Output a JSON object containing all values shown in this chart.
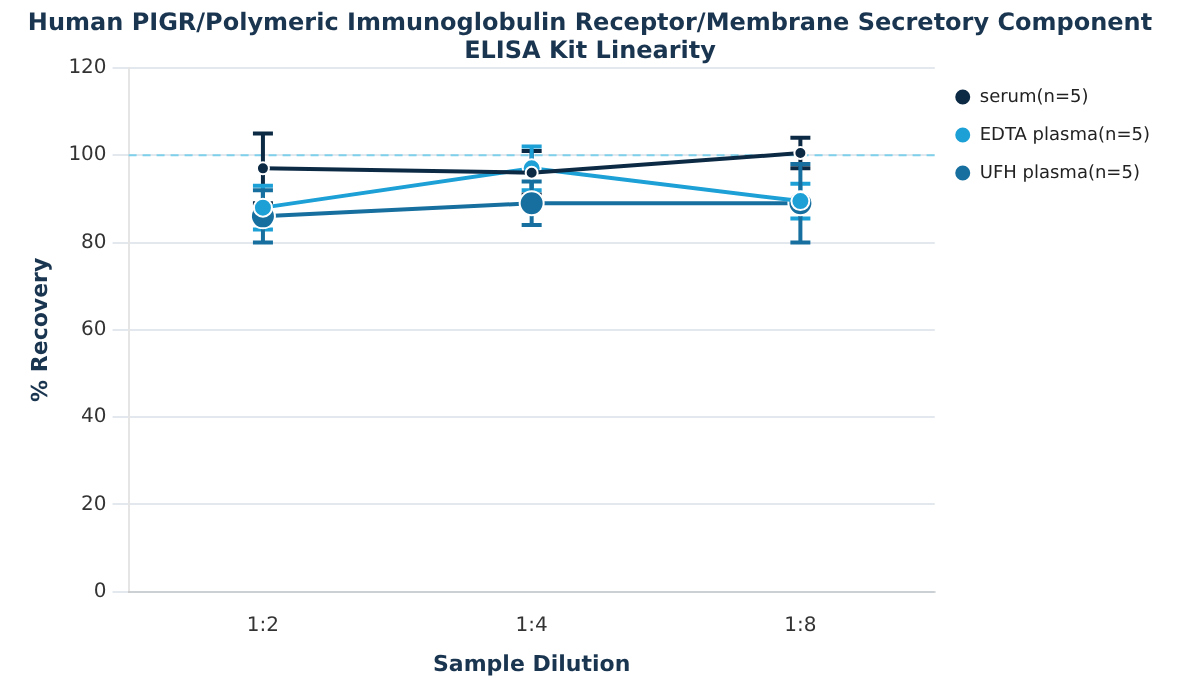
{
  "chart_data": {
    "type": "line",
    "title": "Human PIGR/Polymeric Immunoglobulin Receptor/Membrane Secretory Component ELISA Kit Linearity",
    "xlabel": "Sample Dilution",
    "ylabel": "% Recovery",
    "categories": [
      "1:2",
      "1:4",
      "1:8"
    ],
    "series": [
      {
        "name": "serum(n=5)",
        "color": "#0d2a45",
        "values": [
          97,
          96,
          100.5
        ],
        "errors": [
          8,
          5,
          3.5
        ]
      },
      {
        "name": "EDTA plasma(n=5)",
        "color": "#1ca0d6",
        "values": [
          88,
          97,
          89.5
        ],
        "errors": [
          5,
          5,
          4
        ]
      },
      {
        "name": "UFH plasma(n=5)",
        "color": "#166f9e",
        "values": [
          86,
          89,
          89
        ],
        "errors": [
          6,
          5,
          9
        ]
      }
    ],
    "ylim": [
      0,
      120
    ],
    "yticks": [
      0,
      20,
      40,
      60,
      80,
      100,
      120
    ],
    "grid": "y",
    "legend": "top right",
    "marker": "circle",
    "line_style": "solid",
    "ref_lines": [
      {
        "axis": "y",
        "value": 100,
        "color": "#7fd0ea",
        "line_style": "dashed"
      }
    ]
  }
}
